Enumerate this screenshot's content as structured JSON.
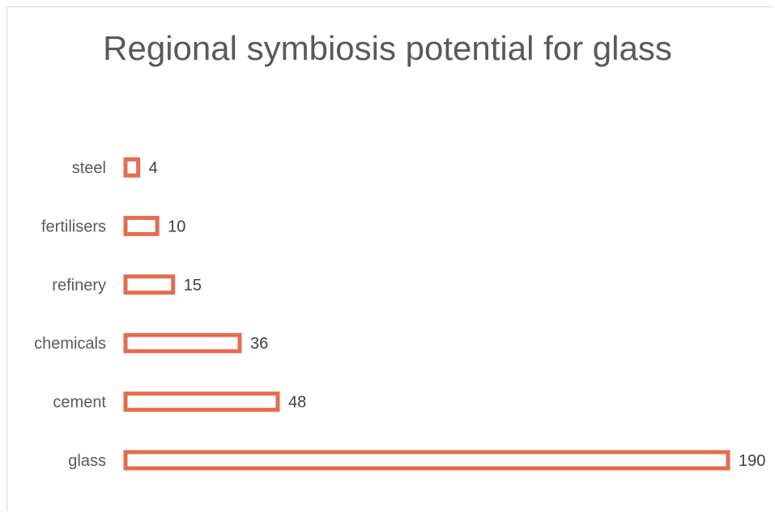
{
  "chart_data": {
    "type": "bar",
    "orientation": "horizontal",
    "title": "Regional symbiosis potential for glass",
    "categories": [
      "steel",
      "fertilisers",
      "refinery",
      "chemicals",
      "cement",
      "glass"
    ],
    "values": [
      4,
      10,
      15,
      36,
      48,
      190
    ],
    "xlabel": "",
    "ylabel": "",
    "xlim": [
      0,
      190
    ],
    "grid": false,
    "legend": "none",
    "bar_style": "outline",
    "bar_color": "#e46c50"
  }
}
